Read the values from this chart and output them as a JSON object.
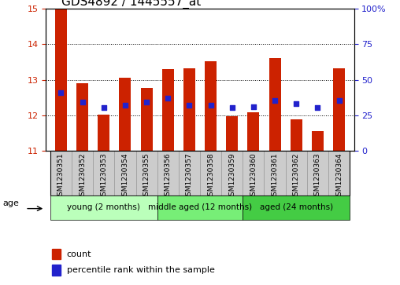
{
  "title": "GDS4892 / 1445557_at",
  "samples": [
    "GSM1230351",
    "GSM1230352",
    "GSM1230353",
    "GSM1230354",
    "GSM1230355",
    "GSM1230356",
    "GSM1230357",
    "GSM1230358",
    "GSM1230359",
    "GSM1230360",
    "GSM1230361",
    "GSM1230362",
    "GSM1230363",
    "GSM1230364"
  ],
  "bar_values": [
    14.97,
    12.9,
    12.02,
    13.05,
    12.78,
    13.3,
    13.32,
    13.52,
    11.98,
    12.08,
    13.62,
    11.9,
    11.55,
    13.32
  ],
  "percentile_values": [
    12.63,
    12.38,
    12.22,
    12.28,
    12.38,
    12.48,
    12.28,
    12.28,
    12.22,
    12.25,
    12.42,
    12.32,
    12.22,
    12.42
  ],
  "ylim_left": [
    11,
    15
  ],
  "ylim_right": [
    0,
    100
  ],
  "yticks_left": [
    11,
    12,
    13,
    14,
    15
  ],
  "yticks_right": [
    0,
    25,
    50,
    75,
    100
  ],
  "bar_color": "#cc2200",
  "dot_color": "#2222cc",
  "bar_bottom": 11.0,
  "groups": [
    {
      "label": "young (2 months)",
      "start": 0,
      "end": 5,
      "color": "#bbffbb"
    },
    {
      "label": "middle aged (12 months)",
      "start": 5,
      "end": 9,
      "color": "#77ee77"
    },
    {
      "label": "aged (24 months)",
      "start": 9,
      "end": 14,
      "color": "#44cc44"
    }
  ],
  "age_label": "age",
  "legend_count_label": "count",
  "legend_percentile_label": "percentile rank within the sample",
  "tick_label_color_left": "#cc2200",
  "tick_label_color_right": "#2222cc",
  "title_fontsize": 11,
  "xtick_fontsize": 6.5,
  "ytick_fontsize": 8,
  "legend_fontsize": 8,
  "group_fontsize": 7.5,
  "xtick_bg": "#cccccc",
  "spine_color": "#888888"
}
